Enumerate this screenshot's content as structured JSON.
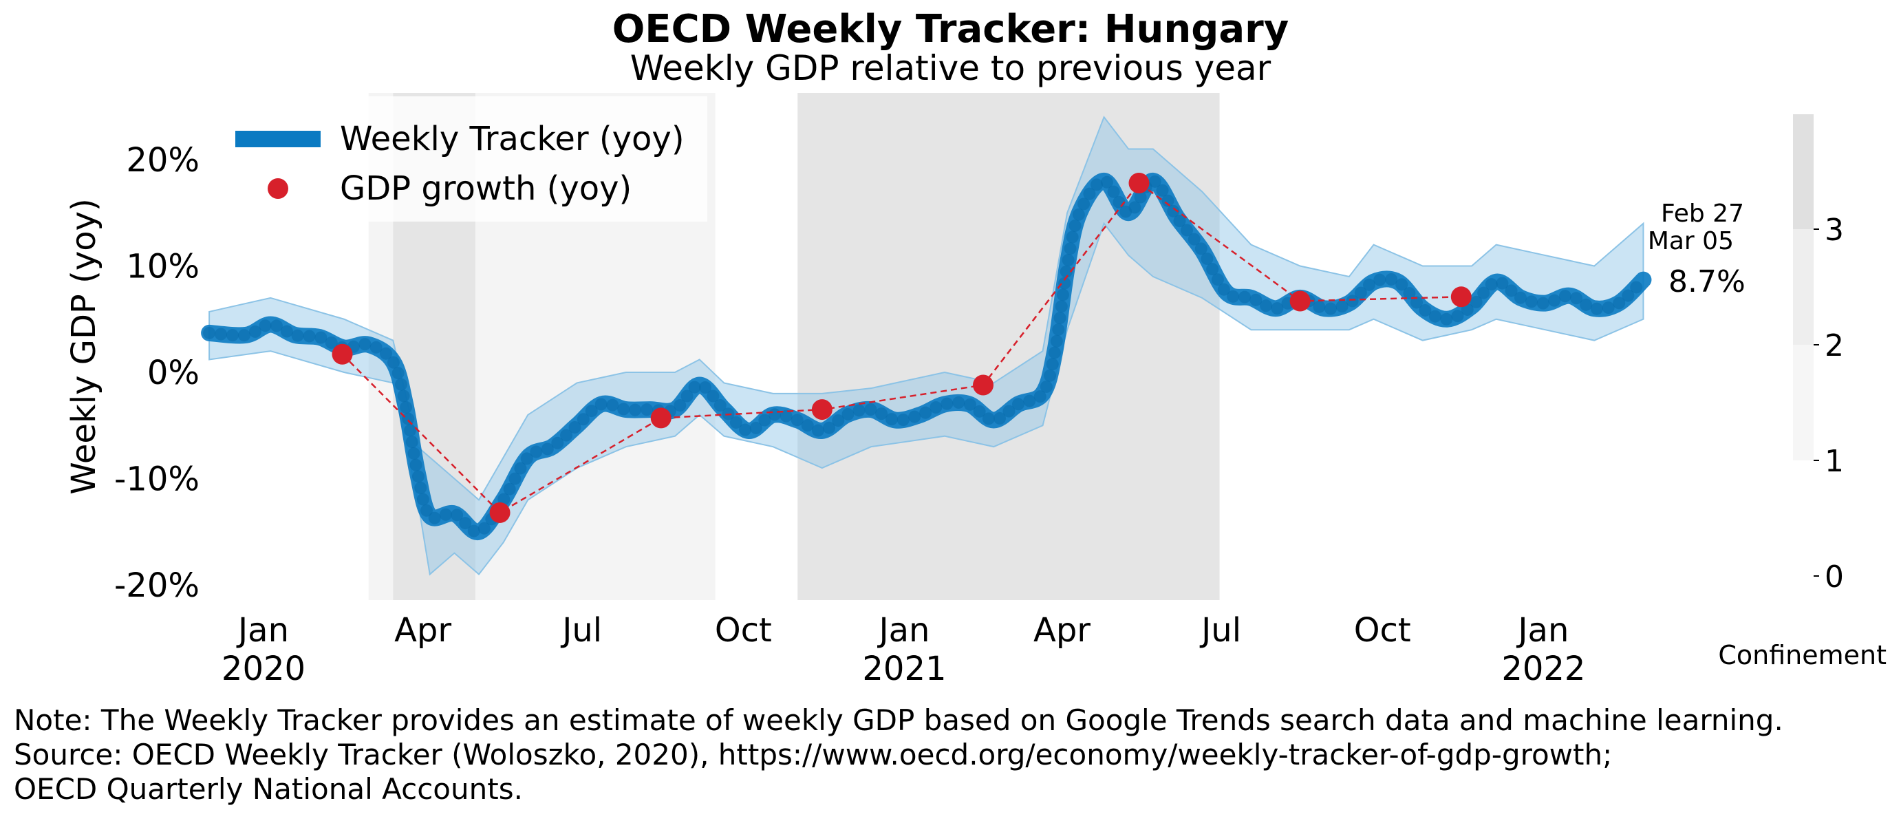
{
  "title": "OECD Weekly Tracker: Hungary",
  "subtitle": "Weekly GDP relative to previous year",
  "note_lines": [
    "Note: The Weekly Tracker provides an estimate of weekly GDP based on Google Trends search data and machine learning.",
    "Source: OECD Weekly Tracker (Woloszko, 2020), https://www.oecd.org/economy/weekly-tracker-of-gdp-growth;",
    "OECD Quarterly National Accounts."
  ],
  "colors": {
    "tracker": "#0a7ac2",
    "band": "#8cc3e6",
    "gdp": "#d7202b",
    "shade_light": "#f4f4f4",
    "shade_dark": "#e5e5e5"
  },
  "chart_data": {
    "type": "line",
    "ylabel": "Weekly GDP (yoy)",
    "ylim": [
      -0.22,
      0.25
    ],
    "yticks": [
      -0.2,
      -0.1,
      0.0,
      0.1,
      0.2
    ],
    "ytick_labels": [
      "-20%",
      "-10%",
      "0%",
      "10%",
      "20%"
    ],
    "xtick_labels": [
      {
        "date": "2020-01-01",
        "label": "Jan\n2020"
      },
      {
        "date": "2020-04-01",
        "label": "Apr"
      },
      {
        "date": "2020-07-01",
        "label": "Jul"
      },
      {
        "date": "2020-10-01",
        "label": "Oct"
      },
      {
        "date": "2021-01-01",
        "label": "Jan\n2021"
      },
      {
        "date": "2021-04-01",
        "label": "Apr"
      },
      {
        "date": "2021-07-01",
        "label": "Jul"
      },
      {
        "date": "2021-10-01",
        "label": "Oct"
      },
      {
        "date": "2022-01-01",
        "label": "Jan\n2022"
      }
    ],
    "legend": {
      "placement": "top-left",
      "entries": [
        "Weekly Tracker (yoy)",
        "GDP growth (yoy)"
      ]
    },
    "tracker_points": [
      [
        "2019-12-01",
        0.037
      ],
      [
        "2019-12-22",
        0.035
      ],
      [
        "2020-01-05",
        0.045
      ],
      [
        "2020-01-19",
        0.035
      ],
      [
        "2020-02-02",
        0.033
      ],
      [
        "2020-02-16",
        0.023
      ],
      [
        "2020-03-01",
        0.026
      ],
      [
        "2020-03-15",
        0.01
      ],
      [
        "2020-03-22",
        -0.03
      ],
      [
        "2020-03-29",
        -0.095
      ],
      [
        "2020-04-05",
        -0.135
      ],
      [
        "2020-04-19",
        -0.133
      ],
      [
        "2020-05-03",
        -0.15
      ],
      [
        "2020-05-17",
        -0.12
      ],
      [
        "2020-05-31",
        -0.08
      ],
      [
        "2020-06-14",
        -0.07
      ],
      [
        "2020-06-28",
        -0.05
      ],
      [
        "2020-07-12",
        -0.03
      ],
      [
        "2020-07-26",
        -0.035
      ],
      [
        "2020-08-09",
        -0.035
      ],
      [
        "2020-08-23",
        -0.035
      ],
      [
        "2020-09-06",
        -0.012
      ],
      [
        "2020-09-20",
        -0.035
      ],
      [
        "2020-10-04",
        -0.055
      ],
      [
        "2020-10-18",
        -0.04
      ],
      [
        "2020-11-01",
        -0.045
      ],
      [
        "2020-11-15",
        -0.055
      ],
      [
        "2020-11-29",
        -0.04
      ],
      [
        "2020-12-13",
        -0.035
      ],
      [
        "2020-12-27",
        -0.045
      ],
      [
        "2021-01-10",
        -0.04
      ],
      [
        "2021-01-24",
        -0.03
      ],
      [
        "2021-02-07",
        -0.03
      ],
      [
        "2021-02-21",
        -0.045
      ],
      [
        "2021-03-07",
        -0.03
      ],
      [
        "2021-03-21",
        -0.02
      ],
      [
        "2021-03-28",
        0.02
      ],
      [
        "2021-04-04",
        0.1
      ],
      [
        "2021-04-11",
        0.15
      ],
      [
        "2021-04-25",
        0.18
      ],
      [
        "2021-05-09",
        0.15
      ],
      [
        "2021-05-23",
        0.18
      ],
      [
        "2021-06-06",
        0.145
      ],
      [
        "2021-06-20",
        0.115
      ],
      [
        "2021-07-04",
        0.075
      ],
      [
        "2021-07-18",
        0.07
      ],
      [
        "2021-08-01",
        0.06
      ],
      [
        "2021-08-15",
        0.07
      ],
      [
        "2021-08-29",
        0.06
      ],
      [
        "2021-09-12",
        0.065
      ],
      [
        "2021-09-26",
        0.085
      ],
      [
        "2021-10-10",
        0.085
      ],
      [
        "2021-10-24",
        0.06
      ],
      [
        "2021-11-07",
        0.05
      ],
      [
        "2021-11-21",
        0.062
      ],
      [
        "2021-12-05",
        0.085
      ],
      [
        "2021-12-19",
        0.07
      ],
      [
        "2022-01-02",
        0.065
      ],
      [
        "2022-01-16",
        0.072
      ],
      [
        "2022-01-30",
        0.06
      ],
      [
        "2022-02-13",
        0.065
      ],
      [
        "2022-02-27",
        0.087
      ]
    ],
    "band": [
      [
        "2019-12-01",
        0.012,
        0.057
      ],
      [
        "2020-01-05",
        0.02,
        0.07
      ],
      [
        "2020-02-16",
        0.0,
        0.05
      ],
      [
        "2020-03-15",
        -0.01,
        0.03
      ],
      [
        "2020-03-29",
        -0.12,
        -0.07
      ],
      [
        "2020-04-05",
        -0.19,
        -0.08
      ],
      [
        "2020-04-19",
        -0.17,
        -0.1
      ],
      [
        "2020-05-03",
        -0.19,
        -0.12
      ],
      [
        "2020-05-17",
        -0.16,
        -0.08
      ],
      [
        "2020-05-31",
        -0.12,
        -0.04
      ],
      [
        "2020-06-28",
        -0.09,
        -0.01
      ],
      [
        "2020-07-26",
        -0.07,
        0.0
      ],
      [
        "2020-08-23",
        -0.06,
        0.0
      ],
      [
        "2020-09-06",
        -0.04,
        0.012
      ],
      [
        "2020-09-20",
        -0.06,
        -0.01
      ],
      [
        "2020-10-18",
        -0.07,
        -0.02
      ],
      [
        "2020-11-15",
        -0.09,
        -0.02
      ],
      [
        "2020-12-13",
        -0.07,
        -0.015
      ],
      [
        "2021-01-24",
        -0.06,
        0.0
      ],
      [
        "2021-02-21",
        -0.07,
        -0.01
      ],
      [
        "2021-03-21",
        -0.05,
        0.02
      ],
      [
        "2021-04-04",
        0.04,
        0.15
      ],
      [
        "2021-04-25",
        0.14,
        0.24
      ],
      [
        "2021-05-09",
        0.11,
        0.21
      ],
      [
        "2021-05-23",
        0.09,
        0.21
      ],
      [
        "2021-06-20",
        0.07,
        0.17
      ],
      [
        "2021-07-18",
        0.04,
        0.12
      ],
      [
        "2021-08-15",
        0.04,
        0.1
      ],
      [
        "2021-09-12",
        0.04,
        0.09
      ],
      [
        "2021-09-26",
        0.05,
        0.12
      ],
      [
        "2021-10-24",
        0.03,
        0.1
      ],
      [
        "2021-11-21",
        0.04,
        0.1
      ],
      [
        "2021-12-05",
        0.05,
        0.12
      ],
      [
        "2022-01-02",
        0.04,
        0.11
      ],
      [
        "2022-01-30",
        0.03,
        0.1
      ],
      [
        "2022-02-27",
        0.05,
        0.14
      ]
    ],
    "gdp_points": [
      [
        "2020-02-15",
        0.017
      ],
      [
        "2020-05-15",
        -0.132
      ],
      [
        "2020-08-15",
        -0.043
      ],
      [
        "2020-11-15",
        -0.035
      ],
      [
        "2021-02-15",
        -0.012
      ],
      [
        "2021-05-15",
        0.178
      ],
      [
        "2021-08-15",
        0.067
      ],
      [
        "2021-11-15",
        0.071
      ]
    ],
    "confinement_spans": [
      {
        "start": "2020-03-01",
        "end": "2020-09-15",
        "level": 1
      },
      {
        "start": "2020-03-15",
        "end": "2020-05-01",
        "level": 2
      },
      {
        "start": "2020-11-01",
        "end": "2021-06-30",
        "level": 2
      }
    ],
    "annotations": {
      "dates": [
        "Feb 27",
        "Mar 05"
      ],
      "last_value": "8.7%"
    },
    "confinement_scale": {
      "label": "Confinement",
      "ticks": [
        "0",
        "1",
        "2",
        "3"
      ]
    }
  }
}
